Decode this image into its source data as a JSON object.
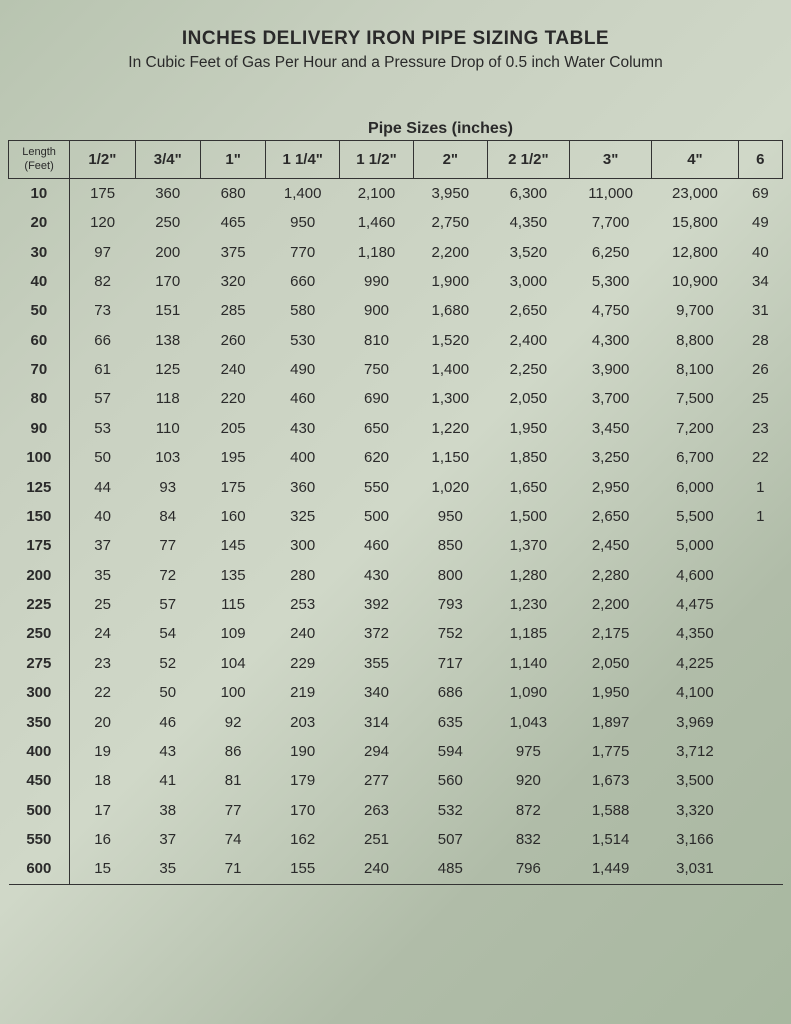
{
  "title": "INCHES DELIVERY IRON PIPE SIZING TABLE",
  "subtitle": "In Cubic Feet of Gas Per Hour and a Pressure Drop of 0.5 inch Water Column",
  "super_header": "Pipe Sizes (inches)",
  "corner_top": "Length",
  "corner_bottom": "(Feet)",
  "columns": [
    "1/2\"",
    "3/4\"",
    "1\"",
    "1 1/4\"",
    "1 1/2\"",
    "2\"",
    "2 1/2\"",
    "3\"",
    "4\"",
    "6"
  ],
  "rows": [
    {
      "len": "10",
      "v": [
        "175",
        "360",
        "680",
        "1,400",
        "2,100",
        "3,950",
        "6,300",
        "11,000",
        "23,000",
        "69"
      ]
    },
    {
      "len": "20",
      "v": [
        "120",
        "250",
        "465",
        "950",
        "1,460",
        "2,750",
        "4,350",
        "7,700",
        "15,800",
        "49"
      ]
    },
    {
      "len": "30",
      "v": [
        "97",
        "200",
        "375",
        "770",
        "1,180",
        "2,200",
        "3,520",
        "6,250",
        "12,800",
        "40"
      ]
    },
    {
      "len": "40",
      "v": [
        "82",
        "170",
        "320",
        "660",
        "990",
        "1,900",
        "3,000",
        "5,300",
        "10,900",
        "34"
      ]
    },
    {
      "len": "50",
      "v": [
        "73",
        "151",
        "285",
        "580",
        "900",
        "1,680",
        "2,650",
        "4,750",
        "9,700",
        "31"
      ]
    },
    {
      "len": "60",
      "v": [
        "66",
        "138",
        "260",
        "530",
        "810",
        "1,520",
        "2,400",
        "4,300",
        "8,800",
        "28"
      ]
    },
    {
      "len": "70",
      "v": [
        "61",
        "125",
        "240",
        "490",
        "750",
        "1,400",
        "2,250",
        "3,900",
        "8,100",
        "26"
      ]
    },
    {
      "len": "80",
      "v": [
        "57",
        "118",
        "220",
        "460",
        "690",
        "1,300",
        "2,050",
        "3,700",
        "7,500",
        "25"
      ]
    },
    {
      "len": "90",
      "v": [
        "53",
        "110",
        "205",
        "430",
        "650",
        "1,220",
        "1,950",
        "3,450",
        "7,200",
        "23"
      ]
    },
    {
      "len": "100",
      "v": [
        "50",
        "103",
        "195",
        "400",
        "620",
        "1,150",
        "1,850",
        "3,250",
        "6,700",
        "22"
      ]
    },
    {
      "len": "125",
      "v": [
        "44",
        "93",
        "175",
        "360",
        "550",
        "1,020",
        "1,650",
        "2,950",
        "6,000",
        "1"
      ]
    },
    {
      "len": "150",
      "v": [
        "40",
        "84",
        "160",
        "325",
        "500",
        "950",
        "1,500",
        "2,650",
        "5,500",
        "1"
      ]
    },
    {
      "len": "175",
      "v": [
        "37",
        "77",
        "145",
        "300",
        "460",
        "850",
        "1,370",
        "2,450",
        "5,000",
        ""
      ]
    },
    {
      "len": "200",
      "v": [
        "35",
        "72",
        "135",
        "280",
        "430",
        "800",
        "1,280",
        "2,280",
        "4,600",
        ""
      ]
    },
    {
      "len": "225",
      "v": [
        "25",
        "57",
        "115",
        "253",
        "392",
        "793",
        "1,230",
        "2,200",
        "4,475",
        ""
      ]
    },
    {
      "len": "250",
      "v": [
        "24",
        "54",
        "109",
        "240",
        "372",
        "752",
        "1,185",
        "2,175",
        "4,350",
        ""
      ]
    },
    {
      "len": "275",
      "v": [
        "23",
        "52",
        "104",
        "229",
        "355",
        "717",
        "1,140",
        "2,050",
        "4,225",
        ""
      ]
    },
    {
      "len": "300",
      "v": [
        "22",
        "50",
        "100",
        "219",
        "340",
        "686",
        "1,090",
        "1,950",
        "4,100",
        ""
      ]
    },
    {
      "len": "350",
      "v": [
        "20",
        "46",
        "92",
        "203",
        "314",
        "635",
        "1,043",
        "1,897",
        "3,969",
        ""
      ]
    },
    {
      "len": "400",
      "v": [
        "19",
        "43",
        "86",
        "190",
        "294",
        "594",
        "975",
        "1,775",
        "3,712",
        ""
      ]
    },
    {
      "len": "450",
      "v": [
        "18",
        "41",
        "81",
        "179",
        "277",
        "560",
        "920",
        "1,673",
        "3,500",
        ""
      ]
    },
    {
      "len": "500",
      "v": [
        "17",
        "38",
        "77",
        "170",
        "263",
        "532",
        "872",
        "1,588",
        "3,320",
        ""
      ]
    },
    {
      "len": "550",
      "v": [
        "16",
        "37",
        "74",
        "162",
        "251",
        "507",
        "832",
        "1,514",
        "3,166",
        ""
      ]
    },
    {
      "len": "600",
      "v": [
        "15",
        "35",
        "71",
        "155",
        "240",
        "485",
        "796",
        "1,449",
        "3,031",
        ""
      ]
    }
  ],
  "style": {
    "title_fontsize": 19,
    "subtitle_fontsize": 15.5,
    "cell_fontsize": 15,
    "text_color": "#2a2a2a",
    "border_color": "#333333",
    "bg_gradient": [
      "#b8c4b0",
      "#c8d0c0",
      "#d0d8c8",
      "#b0bca8",
      "#a8b8a0"
    ]
  }
}
